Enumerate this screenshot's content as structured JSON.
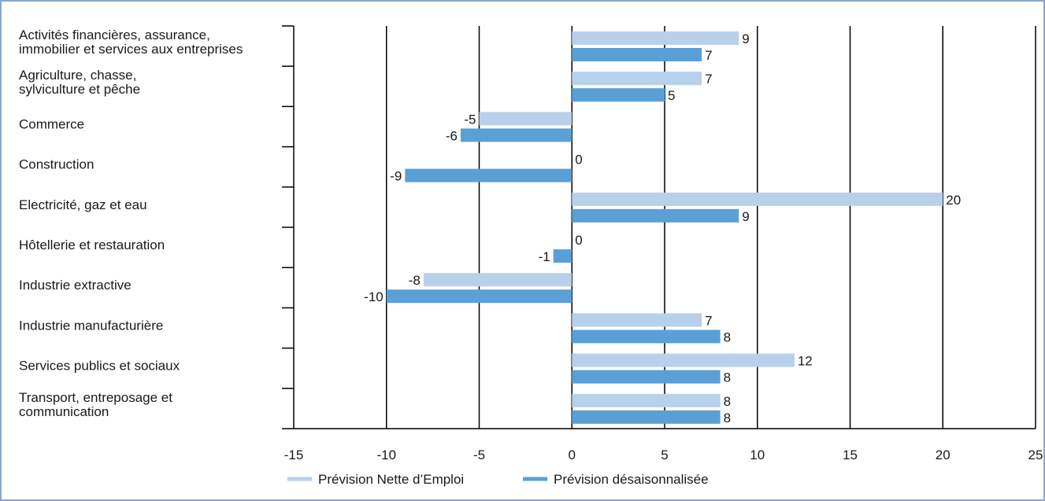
{
  "chart_data": {
    "type": "bar",
    "orientation": "horizontal",
    "categories": [
      [
        "Activités financières, assurance,",
        "immobilier et services aux entreprises"
      ],
      [
        "Agriculture, chasse,",
        "sylviculture et pêche"
      ],
      [
        "Commerce"
      ],
      [
        "Construction"
      ],
      [
        "Electricité, gaz et eau"
      ],
      [
        "Hôtellerie et restauration"
      ],
      [
        "Industrie extractive"
      ],
      [
        "Industrie manufacturière"
      ],
      [
        "Services publics et sociaux"
      ],
      [
        "Transport, entreposage et",
        "communication"
      ]
    ],
    "series": [
      {
        "name": "Prévision Nette d’Emploi",
        "color": "#b8d0ea",
        "values": [
          9,
          7,
          -5,
          0,
          20,
          0,
          -8,
          7,
          12,
          8
        ]
      },
      {
        "name": "Prévision désaisonnalisée",
        "color": "#5aa0d6",
        "values": [
          7,
          5,
          -6,
          -9,
          9,
          -1,
          -10,
          8,
          8,
          8
        ]
      }
    ],
    "xlim": [
      -15,
      25
    ],
    "xticks": [
      -15,
      -10,
      -5,
      0,
      5,
      10,
      15,
      20,
      25
    ],
    "grid": true,
    "legend_position": "bottom"
  }
}
